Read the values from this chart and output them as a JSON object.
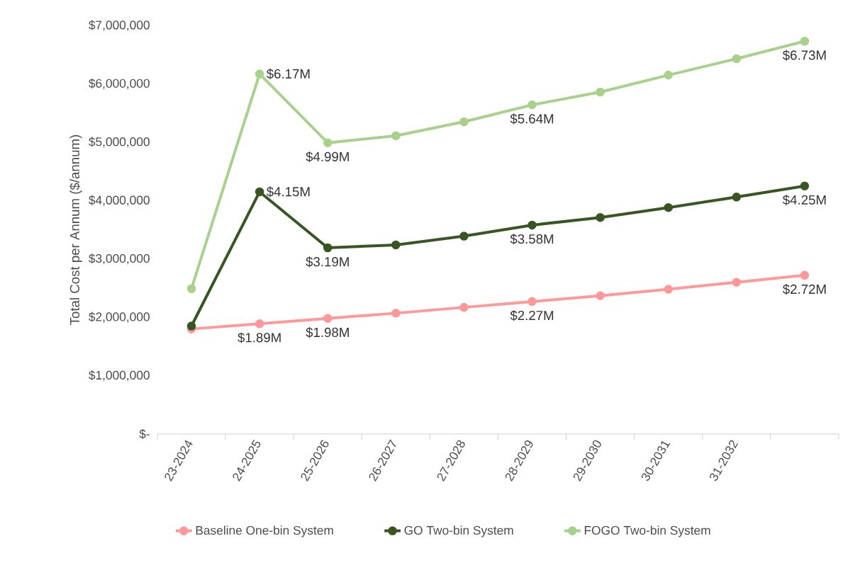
{
  "chart_data": {
    "type": "line",
    "ylabel": "Total Cost per Annum ($/annum)",
    "categories": [
      "23-2024",
      "24-2025",
      "25-2026",
      "26-2027",
      "27-2028",
      "28-2029",
      "29-2030",
      "30-2031",
      "31-2032",
      null
    ],
    "series": [
      {
        "name": "Baseline One-bin System",
        "color": "#ff9999",
        "values": [
          1800000,
          1890000,
          1980000,
          2070000,
          2170000,
          2270000,
          2370000,
          2480000,
          2600000,
          2720000
        ],
        "value_labels": [
          null,
          "$1.89M",
          "$1.98M",
          null,
          null,
          "$2.27M",
          null,
          null,
          null,
          "$2.72M"
        ]
      },
      {
        "name": "GO Two-bin System",
        "color": "#375623",
        "values": [
          1850000,
          4150000,
          3190000,
          3240000,
          3390000,
          3580000,
          3710000,
          3880000,
          4060000,
          4250000
        ],
        "value_labels": [
          null,
          "$4.15M",
          "$3.19M",
          null,
          null,
          "$3.58M",
          null,
          null,
          null,
          "$4.25M"
        ]
      },
      {
        "name": "FOGO Two-bin System",
        "color": "#a9d18e",
        "values": [
          2490000,
          6170000,
          4990000,
          5110000,
          5350000,
          5640000,
          5860000,
          6150000,
          6430000,
          6730000
        ],
        "value_labels": [
          null,
          "$6.17M",
          "$4.99M",
          null,
          null,
          "$5.64M",
          null,
          null,
          null,
          "$6.73M"
        ]
      }
    ],
    "ylim": [
      0,
      7000000
    ],
    "yticks": [
      {
        "value": 0,
        "label": "$-"
      },
      {
        "value": 1000000,
        "label": "$1,000,000"
      },
      {
        "value": 2000000,
        "label": "$2,000,000"
      },
      {
        "value": 3000000,
        "label": "$3,000,000"
      },
      {
        "value": 4000000,
        "label": "$4,000,000"
      },
      {
        "value": 5000000,
        "label": "$5,000,000"
      },
      {
        "value": 6000000,
        "label": "$6,000,000"
      },
      {
        "value": 7000000,
        "label": "$7,000,000"
      }
    ],
    "grid": false,
    "legend": "bottom",
    "marker": "circle",
    "line_style": "solid"
  }
}
